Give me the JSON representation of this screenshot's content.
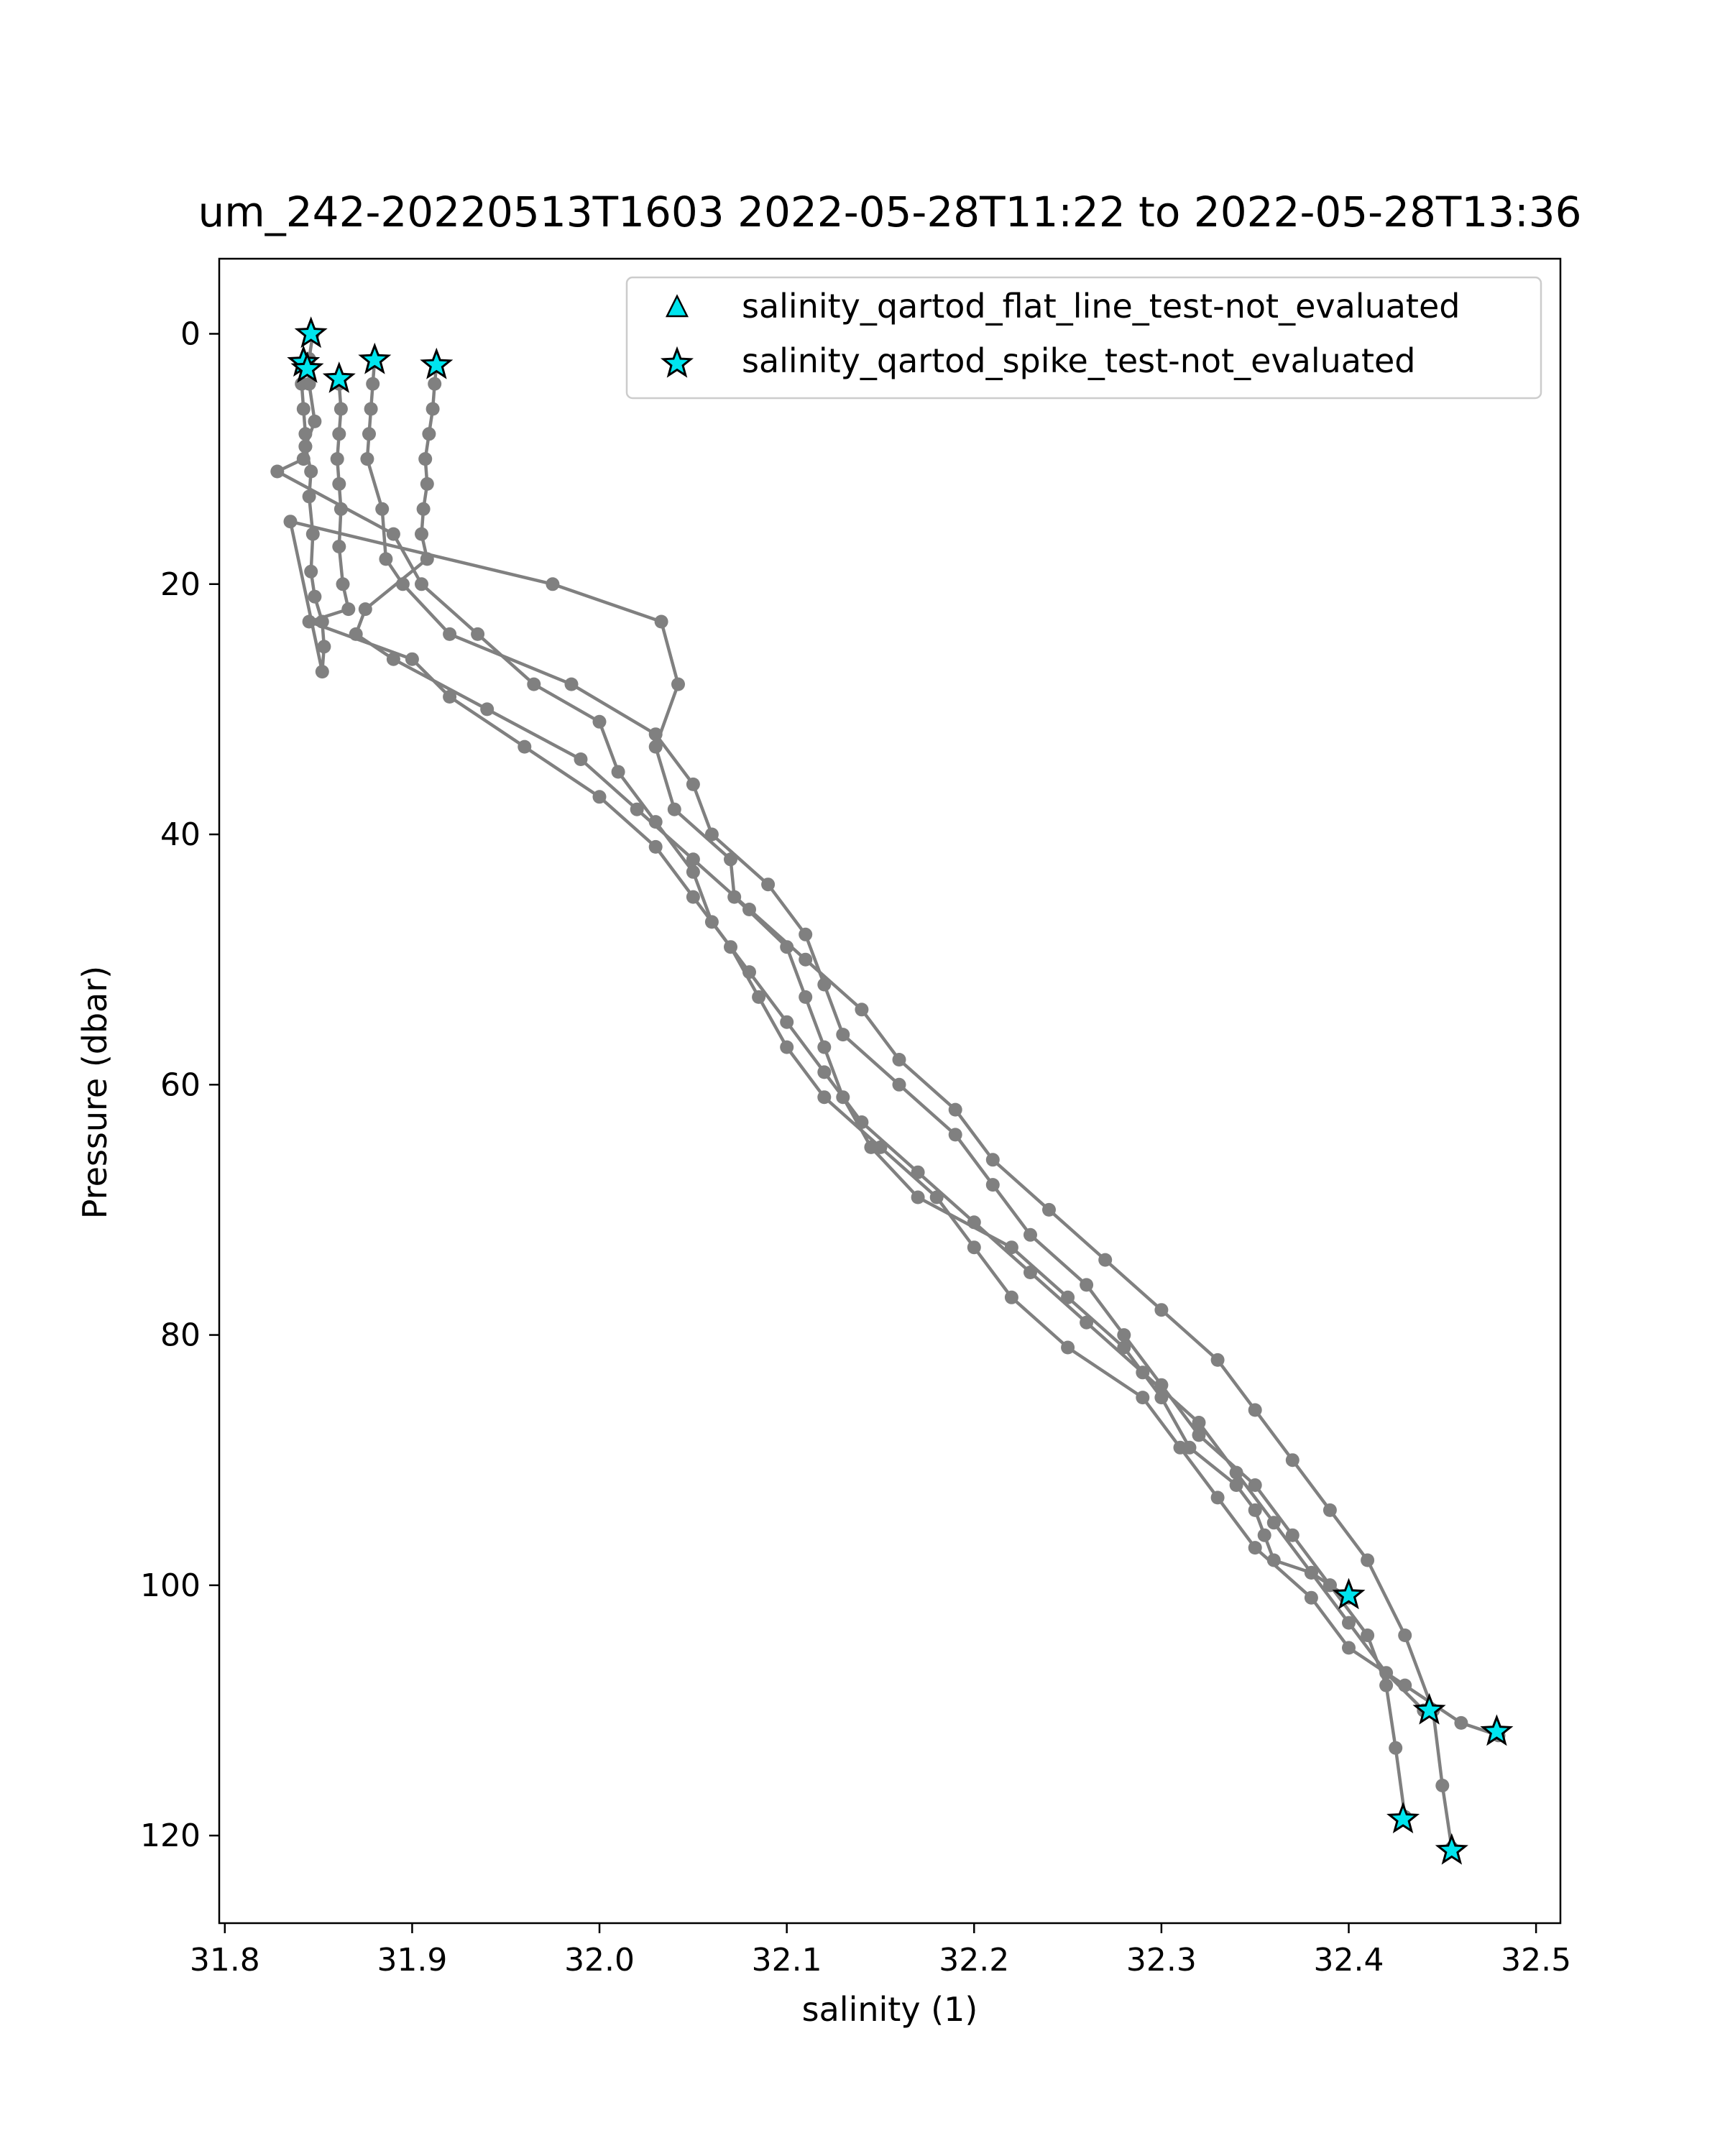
{
  "chart_data": {
    "type": "line",
    "title": "um_242-20220513T1603 2022-05-28T11:22 to 2022-05-28T13:36",
    "xlabel": "salinity (1)",
    "ylabel": "Pressure (dbar)",
    "xlim": [
      31.797,
      32.513
    ],
    "ylim": [
      127,
      -6
    ],
    "y_inverted": true,
    "xticks": [
      "31.8",
      "31.9",
      "32.0",
      "32.1",
      "32.2",
      "32.3",
      "32.4",
      "32.5"
    ],
    "yticks": [
      "0",
      "20",
      "40",
      "60",
      "80",
      "100",
      "120"
    ],
    "grid": false,
    "legend_position": "top-right",
    "colors": {
      "profile": "#808080",
      "marker_fill": "#00e5ee",
      "marker_edge": "#000000"
    },
    "legend": [
      {
        "label": "salinity_qartod_flat_line_test-not_evaluated",
        "marker": "triangle"
      },
      {
        "label": "salinity_qartod_spike_test-not_evaluated",
        "marker": "star"
      }
    ],
    "series": [
      {
        "x": [
          31.847,
          31.845,
          31.845,
          31.848,
          31.843,
          31.846,
          31.845,
          31.847,
          31.846,
          31.848,
          31.852,
          31.853,
          31.852,
          31.835,
          31.975,
          32.033,
          32.042,
          32.03,
          32.04,
          32.07,
          32.072,
          32.1,
          32.11,
          32.12,
          32.13,
          32.145,
          32.17,
          32.22,
          32.25,
          32.28,
          32.3,
          32.315,
          32.34,
          32.35,
          32.355,
          32.36,
          32.38,
          32.39,
          32.4
        ],
        "y": [
          0,
          2,
          4,
          7,
          9,
          11,
          13,
          16,
          19,
          21,
          23,
          25,
          27,
          15,
          20,
          23,
          28,
          33,
          38,
          42,
          45,
          49,
          53,
          57,
          61,
          65,
          69,
          73,
          77,
          81,
          85,
          89,
          92,
          94,
          96,
          98,
          99,
          100,
          101
        ]
      },
      {
        "x": [
          31.842,
          31.841,
          31.842,
          31.843,
          31.843,
          31.842,
          31.828,
          31.89,
          31.905,
          31.935,
          31.965,
          32.0,
          32.01,
          32.03,
          32.05,
          32.06,
          32.08,
          32.1,
          32.12,
          32.14,
          32.17,
          32.2,
          32.23,
          32.26,
          32.29,
          32.32,
          32.34,
          32.36,
          32.38,
          32.4,
          32.42,
          32.44,
          32.443
        ],
        "y": [
          2.5,
          4,
          6,
          8,
          9,
          10,
          11,
          16,
          20,
          24,
          28,
          31,
          35,
          39,
          43,
          47,
          51,
          55,
          59,
          63,
          67,
          71,
          75,
          79,
          83,
          87,
          91,
          95,
          99,
          103,
          107,
          110,
          110
        ]
      },
      {
        "x": [
          31.861,
          31.862,
          31.861,
          31.86,
          31.861,
          31.862,
          31.861,
          31.863,
          31.866,
          31.845,
          31.9,
          31.92,
          31.96,
          32.0,
          32.03,
          32.05,
          32.07,
          32.085,
          32.1,
          32.12,
          32.15,
          32.18,
          32.2,
          32.22,
          32.25,
          32.29,
          32.31,
          32.33,
          32.35,
          32.38,
          32.4,
          32.43,
          32.46,
          32.48
        ],
        "y": [
          4,
          6,
          8,
          10,
          12,
          14,
          17,
          20,
          22,
          23,
          26,
          29,
          33,
          37,
          41,
          45,
          49,
          53,
          57,
          61,
          65,
          69,
          73,
          77,
          81,
          85,
          89,
          93,
          97,
          101,
          105,
          108,
          111,
          112
        ]
      },
      {
        "x": [
          31.88,
          31.879,
          31.878,
          31.877,
          31.876,
          31.884,
          31.886,
          31.895,
          31.92,
          31.985,
          32.03,
          32.05,
          32.06,
          32.09,
          32.11,
          32.12,
          32.13,
          32.16,
          32.19,
          32.21,
          32.23,
          32.26,
          32.28,
          32.3,
          32.32,
          32.35,
          32.37,
          32.39,
          32.41,
          32.42,
          32.425,
          32.43
        ],
        "y": [
          2,
          4,
          6,
          8,
          10,
          14,
          18,
          20,
          24,
          28,
          32,
          36,
          40,
          44,
          48,
          52,
          56,
          60,
          64,
          68,
          72,
          76,
          80,
          84,
          88,
          92,
          96,
          100,
          104,
          108,
          113,
          118.5
        ]
      },
      {
        "x": [
          31.913,
          31.912,
          31.911,
          31.909,
          31.907,
          31.908,
          31.906,
          31.905,
          31.908,
          31.875,
          31.87,
          31.89,
          31.94,
          31.99,
          32.02,
          32.05,
          32.08,
          32.11,
          32.14,
          32.16,
          32.19,
          32.21,
          32.24,
          32.27,
          32.3,
          32.33,
          32.35,
          32.37,
          32.39,
          32.41,
          32.43,
          32.445,
          32.45,
          32.455
        ],
        "y": [
          2.5,
          4,
          6,
          8,
          10,
          12,
          14,
          16,
          18,
          22,
          24,
          26,
          30,
          34,
          38,
          42,
          46,
          50,
          54,
          58,
          62,
          66,
          70,
          74,
          78,
          82,
          86,
          90,
          94,
          98,
          104,
          110,
          116,
          121
        ]
      }
    ],
    "flagged_points": [
      {
        "x": 31.846,
        "y": 0,
        "marker": "star"
      },
      {
        "x": 31.842,
        "y": 2.3,
        "marker": "star"
      },
      {
        "x": 31.844,
        "y": 2.8,
        "marker": "star"
      },
      {
        "x": 31.861,
        "y": 3.6,
        "marker": "star"
      },
      {
        "x": 31.88,
        "y": 2.1,
        "marker": "star"
      },
      {
        "x": 31.913,
        "y": 2.5,
        "marker": "star"
      },
      {
        "x": 32.4,
        "y": 100.8,
        "marker": "star"
      },
      {
        "x": 32.443,
        "y": 110.0,
        "marker": "star"
      },
      {
        "x": 32.479,
        "y": 111.7,
        "marker": "star"
      },
      {
        "x": 32.429,
        "y": 118.7,
        "marker": "star"
      },
      {
        "x": 32.455,
        "y": 121.2,
        "marker": "star"
      }
    ]
  }
}
